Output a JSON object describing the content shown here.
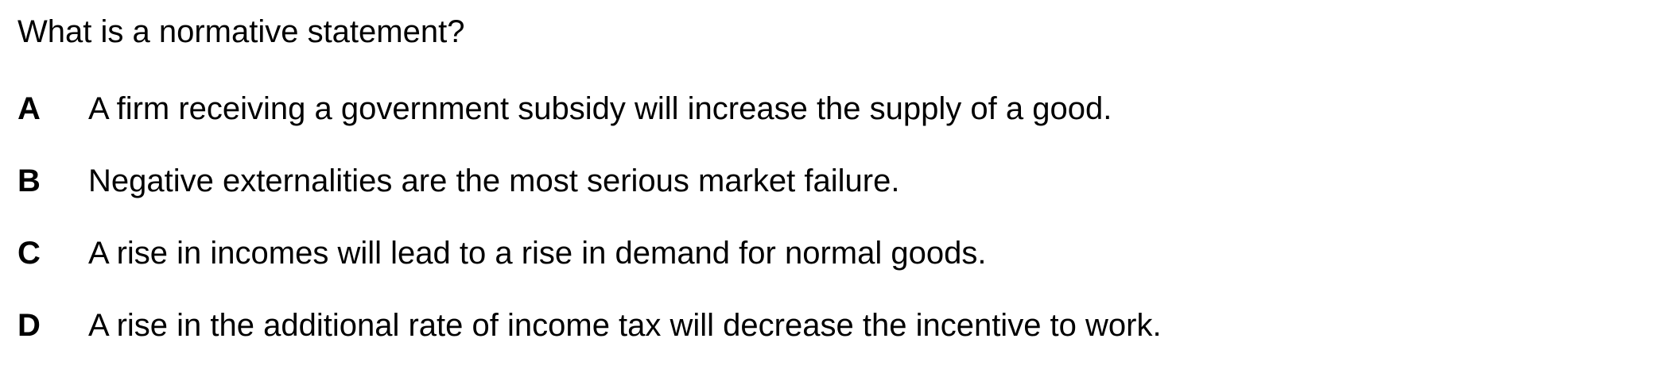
{
  "question": "What is a normative statement?",
  "options": [
    {
      "letter": "A",
      "text": "A firm receiving a government subsidy will increase the supply of a good."
    },
    {
      "letter": "B",
      "text": "Negative externalities are the most serious market failure."
    },
    {
      "letter": "C",
      "text": "A rise in incomes will lead to a rise in demand for normal goods."
    },
    {
      "letter": "D",
      "text": "A rise in the additional rate of income tax will decrease the incentive to work."
    }
  ]
}
